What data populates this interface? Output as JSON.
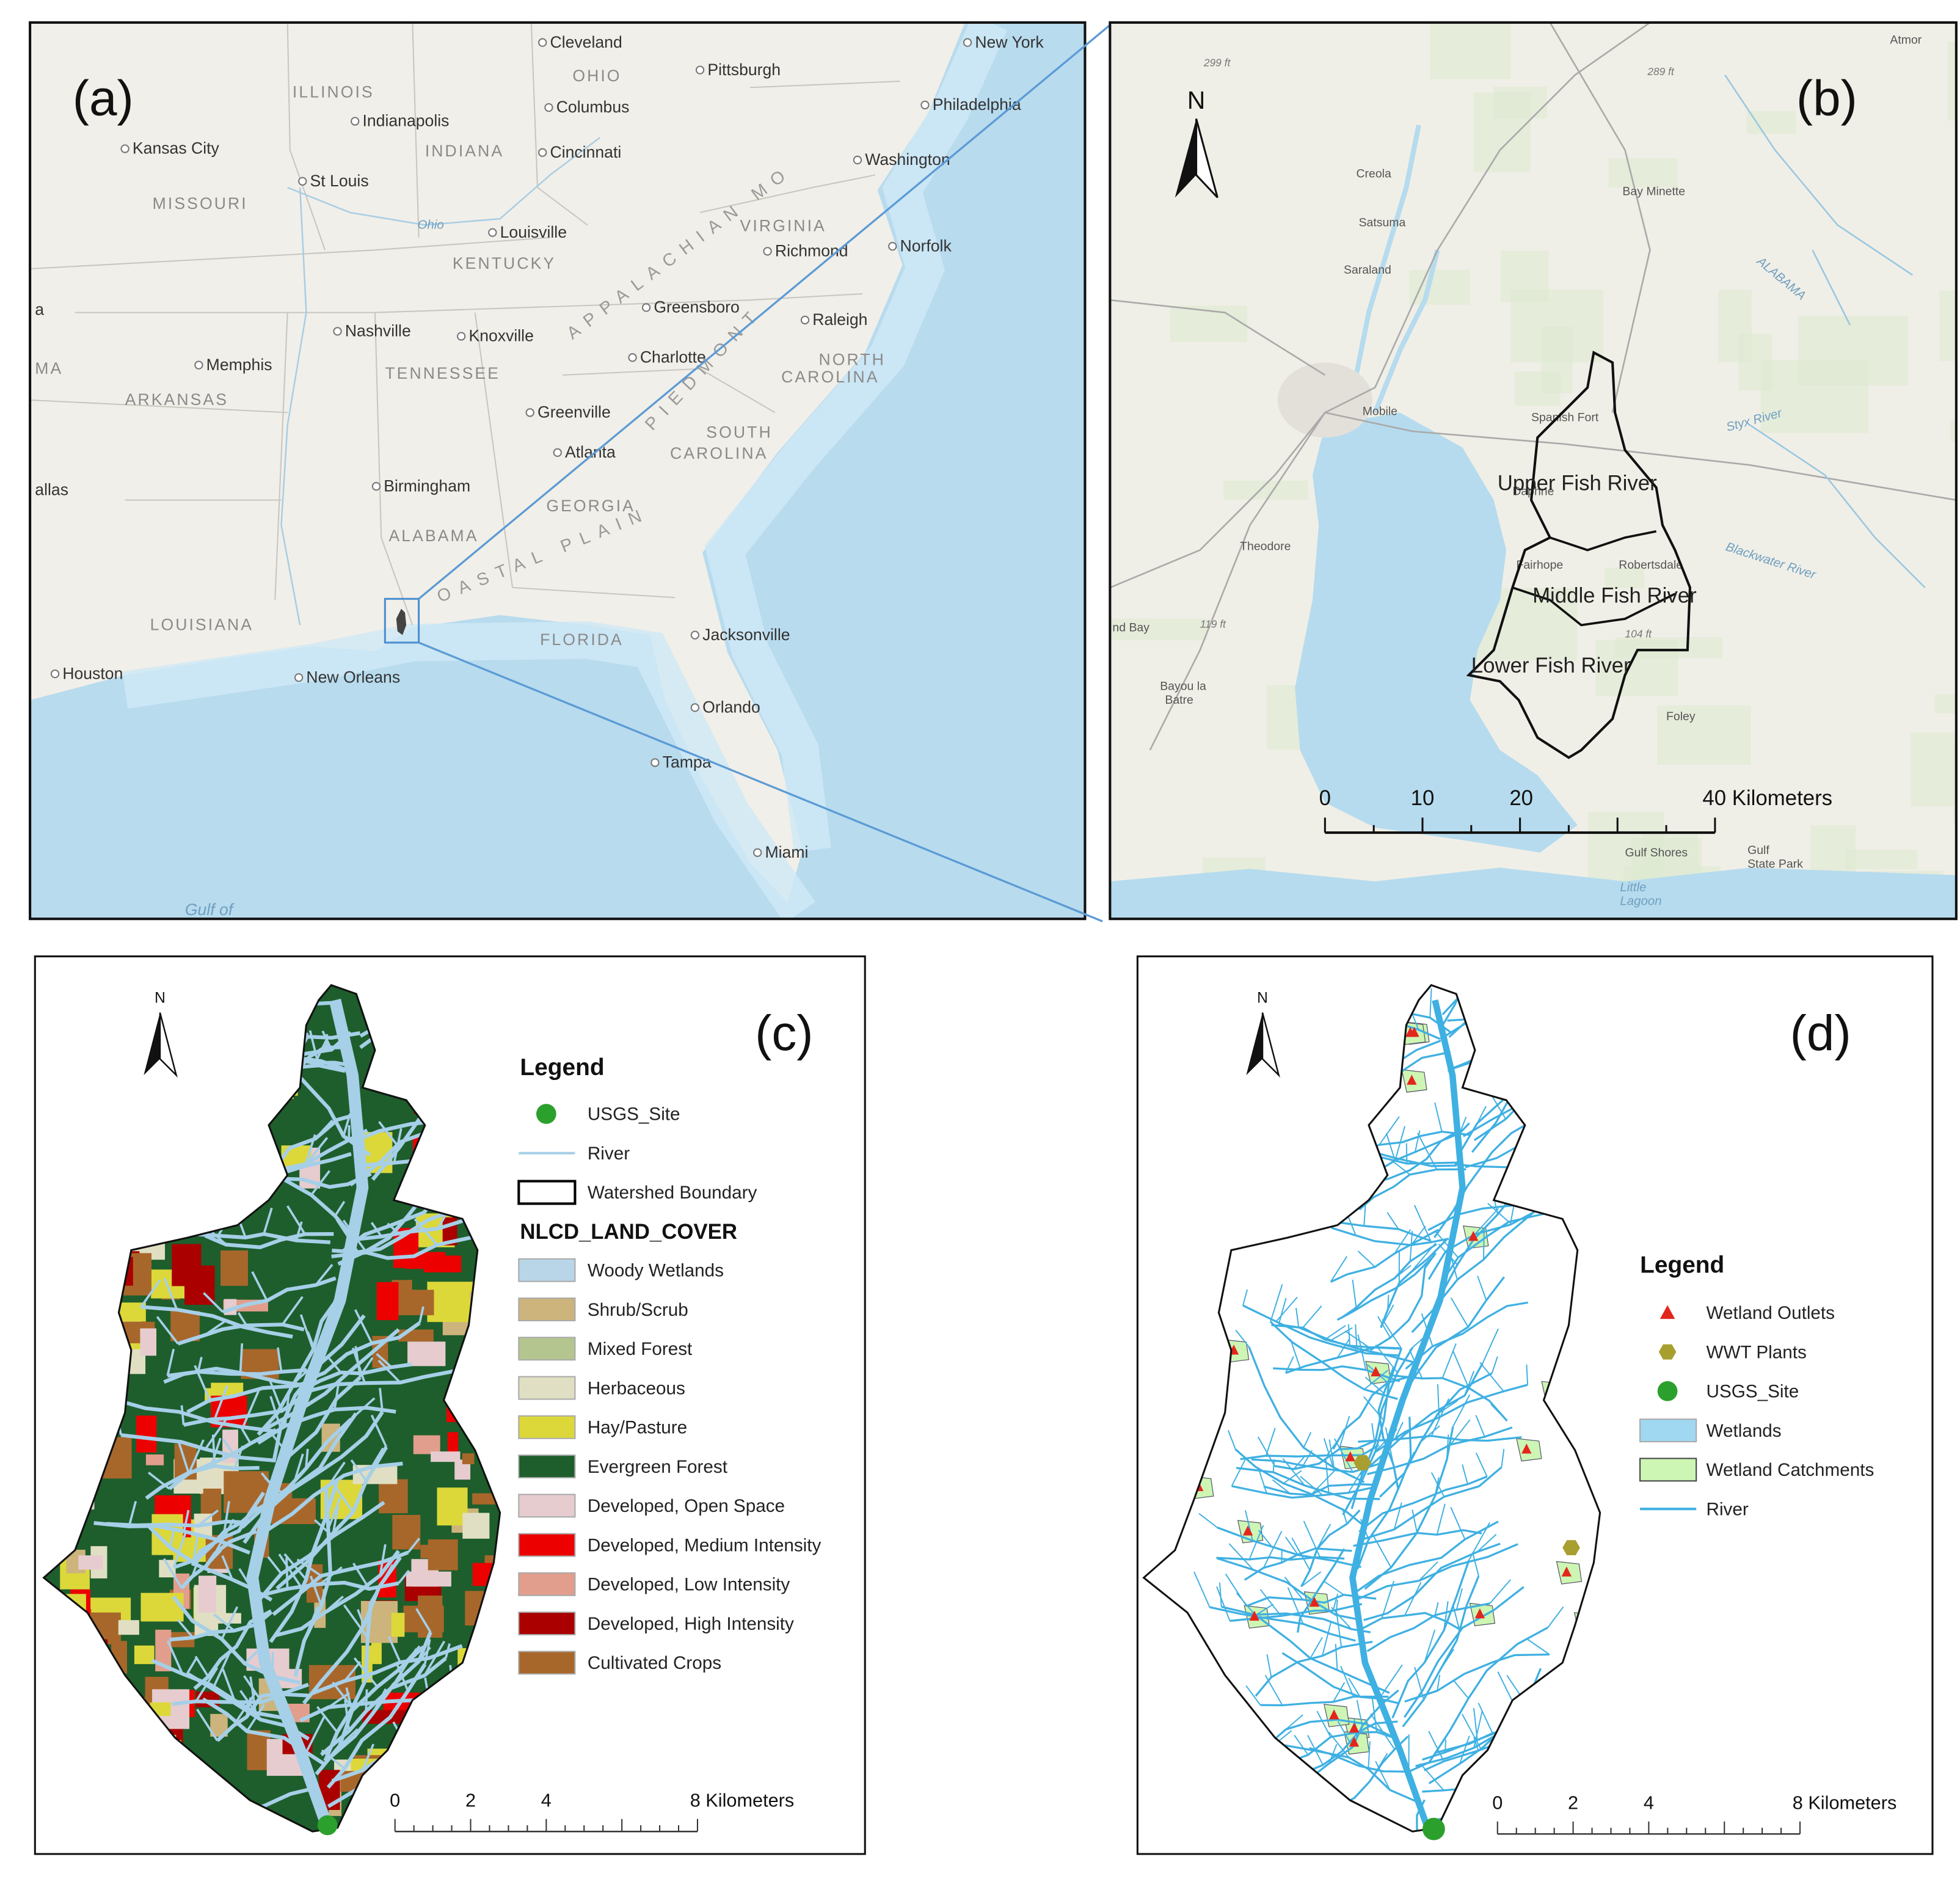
{
  "panel_a": {
    "label": "(a)",
    "places": [
      "Cleveland",
      "Pittsburgh",
      "New York",
      "OHIO",
      "Columbus",
      "ILLINOIS",
      "Indianapolis",
      "INDIANA",
      "Cincinnati",
      "Philadelphia",
      "Kansas City",
      "St Louis",
      "MISSOURI",
      "Washington",
      "Ohio",
      "Louisville",
      "VIRGINIA",
      "KENTUCKY",
      "Richmond",
      "Norfolk",
      "Greensboro",
      "Raleigh",
      "Nashville",
      "Knoxville",
      "Memphis",
      "Charlotte",
      "NORTH",
      "TENNESSEE",
      "CAROLINA",
      "ARKANSAS",
      "Greenville",
      "SOUTH",
      "Atlanta",
      "CAROLINA",
      "Birmingham",
      "GEORGIA",
      "ALABAMA",
      "LOUISIANA",
      "FLORIDA",
      "Jacksonville",
      "Houston",
      "New Orleans",
      "Orlando",
      "Tampa",
      "Miami",
      "Gulf of",
      "allas",
      "a",
      "MA",
      "APPALACHIAN MO",
      "PIEDMONT",
      "OASTAL PLAIN"
    ]
  },
  "panel_b": {
    "label": "(b)",
    "north": "N",
    "places": [
      "Atmor",
      "299 ft",
      "289 ft",
      "Creola",
      "Bay Minette",
      "Satsuma",
      "Saraland",
      "ALABAMA",
      "Mobile",
      "Spanish Fort",
      "Styx River",
      "Daphne",
      "Theodore",
      "Robertsdale",
      "Fairhope",
      "Blackwater River",
      "nd Bay",
      "119 ft",
      "104 ft",
      "Bayou la",
      "Batre",
      "Foley",
      "Gulf Shores",
      "Gulf",
      "State Park",
      "Little",
      "Lagoon"
    ],
    "watersheds": [
      "Upper Fish River",
      "Middle Fish River",
      "Lower Fish River"
    ],
    "scale": [
      "0",
      "10",
      "20",
      "40 Kilometers"
    ]
  },
  "panel_c": {
    "label": "(c)",
    "north": "N",
    "legend_title": "Legend",
    "legend": [
      {
        "label": "USGS_Site",
        "color": "#2ca02c"
      },
      {
        "label": "River",
        "color": "#a6cfe8"
      },
      {
        "label": "Watershed Boundary",
        "color": "#000000"
      }
    ],
    "land_cover_title": "NLCD_LAND_COVER",
    "land_cover": [
      {
        "label": "Woody Wetlands",
        "color": "#b8d6e8"
      },
      {
        "label": "Shrub/Scrub",
        "color": "#ccb47c"
      },
      {
        "label": "Mixed Forest",
        "color": "#b5c58f"
      },
      {
        "label": "Herbaceous",
        "color": "#e0dfc3"
      },
      {
        "label": "Hay/Pasture",
        "color": "#dcd83a"
      },
      {
        "label": "Evergreen Forest",
        "color": "#1e5e2c"
      },
      {
        "label": "Developed, Open Space",
        "color": "#e6cccf"
      },
      {
        "label": "Developed, Medium Intensity",
        "color": "#ed0000"
      },
      {
        "label": "Developed, Low Intensity",
        "color": "#e29e8c"
      },
      {
        "label": "Developed, High Intensity",
        "color": "#aa0000"
      },
      {
        "label": "Cultivated Crops",
        "color": "#a8672a"
      }
    ],
    "scale": [
      "0",
      "2",
      "4",
      "8 Kilometers"
    ]
  },
  "panel_d": {
    "label": "(d)",
    "north": "N",
    "legend_title": "Legend",
    "legend": [
      {
        "label": "Wetland Outlets",
        "color": "#e3261c"
      },
      {
        "label": "WWT Plants",
        "color": "#a89f30"
      },
      {
        "label": "USGS_Site",
        "color": "#2ca02c"
      },
      {
        "label": "Wetlands",
        "color": "#9fd8f0"
      },
      {
        "label": "Wetland Catchments",
        "color": "#cdf5b4"
      },
      {
        "label": "River",
        "color": "#3fb0e2"
      }
    ],
    "scale": [
      "0",
      "2",
      "4",
      "8 Kilometers"
    ]
  }
}
